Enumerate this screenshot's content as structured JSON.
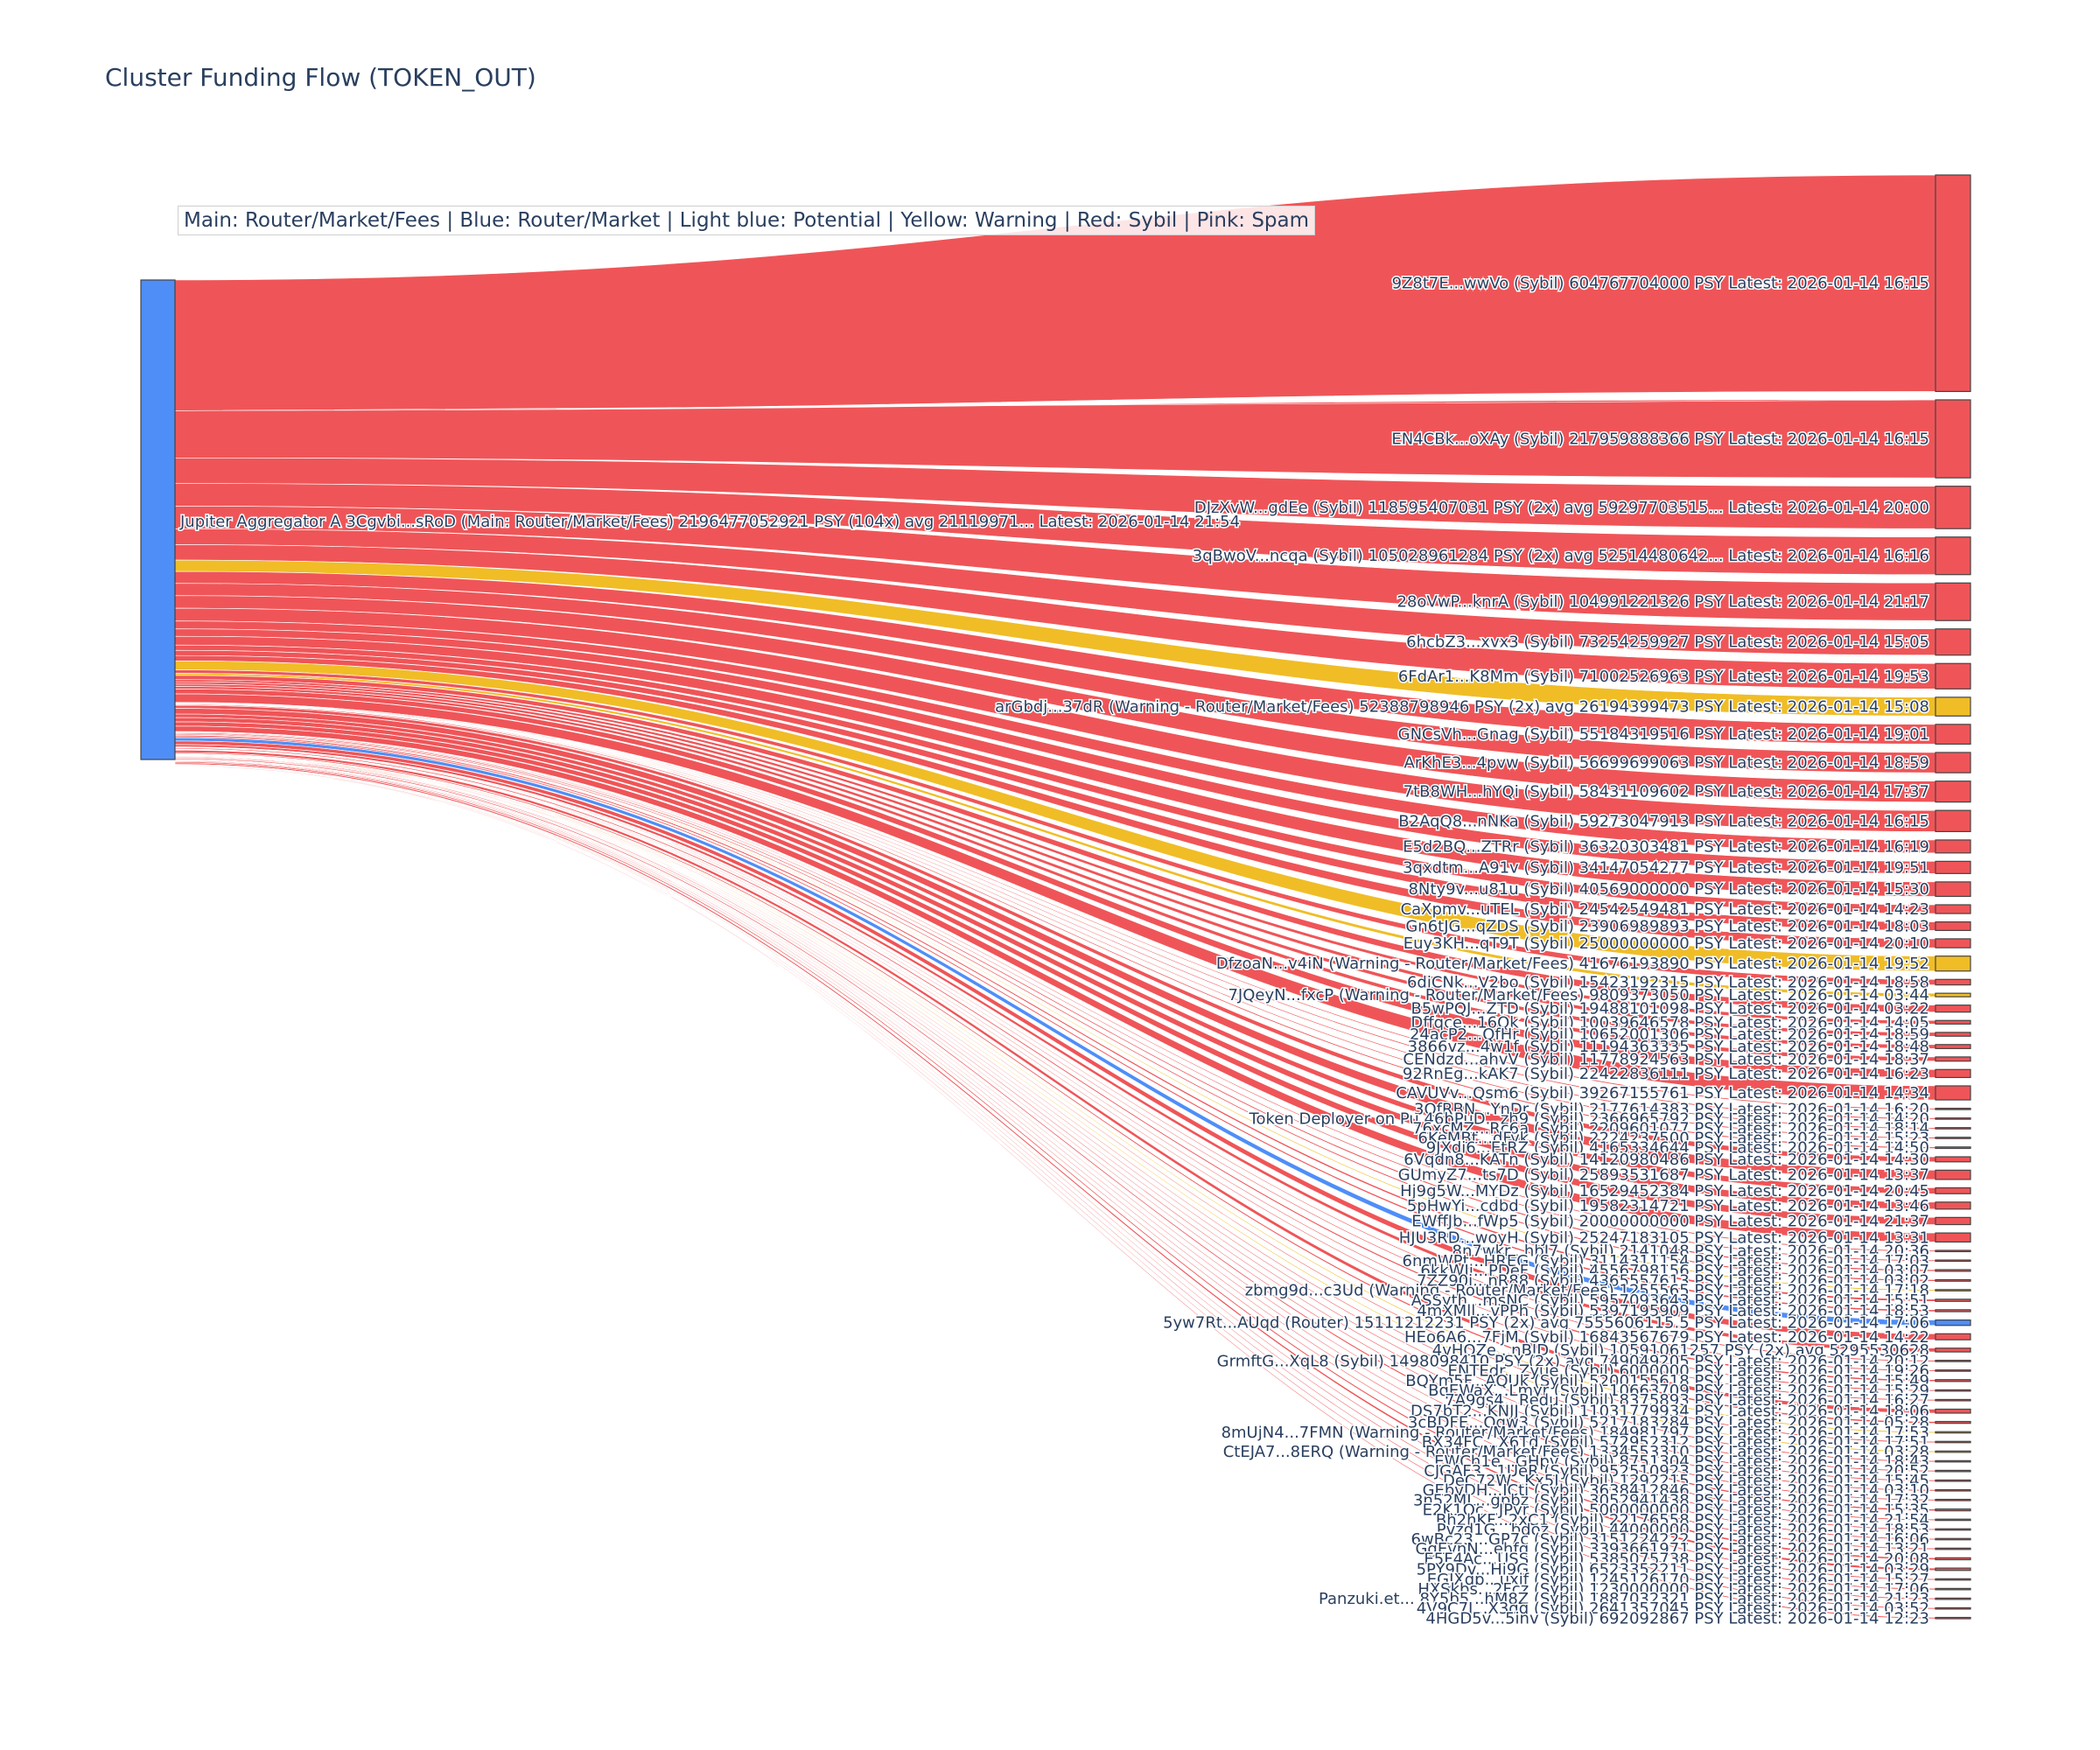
{
  "chart_data": {
    "type": "sankey",
    "title": "Cluster Funding Flow (TOKEN_OUT)",
    "annotation": "Main: Router/Market/Fees  |  Blue: Router/Market | Light blue: Potential | Yellow: Warning | Red: Sybil | Pink: Spam",
    "colors": {
      "source_node": "#4f8ef7",
      "sybil": "#ef5558",
      "warning": "#f0bd27",
      "router": "#4f8ef7",
      "node_border": "#444444",
      "label": "#2a3f5f"
    },
    "source": {
      "label": "Jupiter Aggregator A 3Cgvbi...sRoD (Main: Router/Market/Fees) 2196477052921 PSY (104x) avg 21119971... Latest: 2026-01-14 21:54",
      "value": 2196477052921
    },
    "targets": [
      {
        "label": "9Z8t7E...wwVo (Sybil) 604767704000 PSY Latest: 2026-01-14 16:15",
        "value": 604767704000,
        "cat": "sybil"
      },
      {
        "label": "EN4CBk...oXAy (Sybil) 217959888366 PSY Latest: 2026-01-14 16:15",
        "value": 217959888366,
        "cat": "sybil"
      },
      {
        "label": "DJzXvW...gdEe (Sybil) 118595407031 PSY (2x) avg 59297703515... Latest: 2026-01-14 20:00",
        "value": 118595407031,
        "cat": "sybil"
      },
      {
        "label": "3qBwoV...ncqa (Sybil) 105028961284 PSY (2x) avg 52514480642... Latest: 2026-01-14 16:16",
        "value": 105028961284,
        "cat": "sybil"
      },
      {
        "label": "28oVwP...knrA (Sybil) 104991221326 PSY Latest: 2026-01-14 21:17",
        "value": 104991221326,
        "cat": "sybil"
      },
      {
        "label": "6hcbZ3...xvx3 (Sybil) 73254259927 PSY Latest: 2026-01-14 15:05",
        "value": 73254259927,
        "cat": "sybil"
      },
      {
        "label": "6FdAr1...K8Mm (Sybil) 71002526963 PSY Latest: 2026-01-14 19:53",
        "value": 71002526963,
        "cat": "sybil"
      },
      {
        "label": "arGbdj...37dR (Warning - Router/Market/Fees) 52388798946 PSY (2x) avg 26194399473 PSY Latest: 2026-01-14 15:08",
        "value": 52388798946,
        "cat": "warning"
      },
      {
        "label": "GNCsVh...Gnag (Sybil) 55184319516 PSY Latest: 2026-01-14 19:01",
        "value": 55184319516,
        "cat": "sybil"
      },
      {
        "label": "ArKhE3...4pvw (Sybil) 56699699063 PSY Latest: 2026-01-14 18:59",
        "value": 56699699063,
        "cat": "sybil"
      },
      {
        "label": "7tB8WH...hYQi (Sybil) 58431109602 PSY Latest: 2026-01-14 17:37",
        "value": 58431109602,
        "cat": "sybil"
      },
      {
        "label": "B2AqQ8...nNKa (Sybil) 59273047913 PSY Latest: 2026-01-14 16:15",
        "value": 59273047913,
        "cat": "sybil"
      },
      {
        "label": "E5d2BQ...ZTRr (Sybil) 36320303481 PSY Latest: 2026-01-14 16:19",
        "value": 36320303481,
        "cat": "sybil"
      },
      {
        "label": "3qxdtm...A91v (Sybil) 34147054277 PSY Latest: 2026-01-14 19:51",
        "value": 34147054277,
        "cat": "sybil"
      },
      {
        "label": "8Nty9v...u81u (Sybil) 40569000000 PSY Latest: 2026-01-14 15:30",
        "value": 40569000000,
        "cat": "sybil"
      },
      {
        "label": "CaXpmv...uTEL (Sybil) 24542549481 PSY Latest: 2026-01-14 14:23",
        "value": 24542549481,
        "cat": "sybil"
      },
      {
        "label": "Gn6tJG...qZDS (Sybil) 23906989893 PSY Latest: 2026-01-14 18:03",
        "value": 23906989893,
        "cat": "sybil"
      },
      {
        "label": "Euy3KH...qT9T (Sybil) 25000000000 PSY Latest: 2026-01-14 20:10",
        "value": 25000000000,
        "cat": "sybil"
      },
      {
        "label": "DfzoaN...v4iN (Warning - Router/Market/Fees) 41676193890 PSY Latest: 2026-01-14 19:52",
        "value": 41676193890,
        "cat": "warning"
      },
      {
        "label": "6diCNk...V2bo (Sybil) 15423192315 PSY Latest: 2026-01-14 18:58",
        "value": 15423192315,
        "cat": "sybil"
      },
      {
        "label": "7JQeyN...fxcP (Warning - Router/Market/Fees) 9809373050 PSY Latest: 2026-01-14 03:44",
        "value": 9809373050,
        "cat": "warning"
      },
      {
        "label": "B5wPQJ...ZTD (Sybil) 19488101098 PSY Latest: 2026-01-14 03:22",
        "value": 19488101098,
        "cat": "sybil"
      },
      {
        "label": "Dffqce...16Qk (Sybil) 10039646578 PSY Latest: 2026-01-14 14:05",
        "value": 10039646578,
        "cat": "sybil"
      },
      {
        "label": "24acP2...QfHr (Sybil) 10652001306 PSY Latest: 2026-01-14 18:59",
        "value": 10652001306,
        "cat": "sybil"
      },
      {
        "label": "3866vz...4w1f (Sybil) 11194363335 PSY Latest: 2026-01-14 18:48",
        "value": 11194363335,
        "cat": "sybil"
      },
      {
        "label": "CENdzd...ahvV (Sybil) 11778924563 PSY Latest: 2026-01-14 18:37",
        "value": 11778924563,
        "cat": "sybil"
      },
      {
        "label": "92RnEg...kAK7 (Sybil) 22422836111 PSY Latest: 2026-01-14 16:23",
        "value": 22422836111,
        "cat": "sybil"
      },
      {
        "label": "CAVUVv...Qsm6 (Sybil) 39267155761 PSY Latest: 2026-01-14 14:34",
        "value": 39267155761,
        "cat": "sybil"
      },
      {
        "label": "3QfRBN...YnDr (Sybil) 2177614383 PSY Latest: 2026-01-14 16:20",
        "value": 2177614383,
        "cat": "sybil"
      },
      {
        "label": "Token Deployer on Pu 46bPuD...zh9 (Sybil) 2366965792 PSY Latest: 2026-01-14 14:20",
        "value": 2366965792,
        "cat": "sybil"
      },
      {
        "label": "76xcMZ...Rc6a (Sybil) 2209601077 PSY Latest: 2026-01-14 18:14",
        "value": 2209601077,
        "cat": "sybil"
      },
      {
        "label": "6KeMBt...dFyk (Sybil) 2224237500 PSY Latest: 2026-01-14 15:23",
        "value": 2224237500,
        "cat": "sybil"
      },
      {
        "label": "9JXdi6...EtRZ (Sybil) 4165334644 PSY Latest: 2026-01-14 14:50",
        "value": 4165334644,
        "cat": "sybil"
      },
      {
        "label": "6Vqdn8...KATn (Sybil) 14120980486 PSY Latest: 2026-01-14 14:30",
        "value": 14120980486,
        "cat": "sybil"
      },
      {
        "label": "GUmyZ7...ts7D (Sybil) 25893531687 PSY Latest: 2026-01-14 13:37",
        "value": 25893531687,
        "cat": "sybil"
      },
      {
        "label": "Hj9g5W...MYDz (Sybil) 16529452384 PSY Latest: 2026-01-14 20:45",
        "value": 16529452384,
        "cat": "sybil"
      },
      {
        "label": "5pHwYi...cdbd (Sybil) 19582314721 PSY Latest: 2026-01-14 13:46",
        "value": 19582314721,
        "cat": "sybil"
      },
      {
        "label": "EWffJb...fWp5 (Sybil) 20000000000 PSY Latest: 2026-01-14 21:37",
        "value": 20000000000,
        "cat": "sybil"
      },
      {
        "label": "HJU3RD...woyH (Sybil) 25247183105 PSY Latest: 2026-01-14 13:31",
        "value": 25247183105,
        "cat": "sybil"
      },
      {
        "label": "8n7wkr...hbJ7 (Sybil) 2141048 PSY Latest: 2026-01-14 20:36",
        "value": 2141048,
        "cat": "sybil"
      },
      {
        "label": "6nmWPt...HREG (Sybil) 3114311154 PSY Latest: 2026-01-14 17:03",
        "value": 3114311154,
        "cat": "sybil"
      },
      {
        "label": "6kkWJi...PDeF (Sybil) 4556798156 PSY Latest: 2026-01-14 03:07",
        "value": 4556798156,
        "cat": "sybil"
      },
      {
        "label": "7ZZ90i...nR88 (Sybil) 4365557613 PSY Latest: 2026-01-14 03:02",
        "value": 4365557613,
        "cat": "sybil"
      },
      {
        "label": "zbmg9d...c3Ud (Warning - Router/Market/Fees) 1255565 PSY Latest: 2026-01-14 17:18",
        "value": 1255565,
        "cat": "warning"
      },
      {
        "label": "ASSyth...msNC (Sybil) 5957093643 PSY Latest: 2026-01-14 15:51",
        "value": 5957093643,
        "cat": "sybil"
      },
      {
        "label": "4mXMll...vPPh (Sybil) 5397195909 PSY Latest: 2026-01-14 18:53",
        "value": 5397195909,
        "cat": "sybil"
      },
      {
        "label": "5yw7Rt...AUqd (Router) 15111212231 PSY (2x) avg 7555606115.5 PSY Latest: 2026-01-14 17:06",
        "value": 15111212231,
        "cat": "router"
      },
      {
        "label": "HEo6A6...7FjM (Sybil) 16843567679 PSY Latest: 2026-01-14 14:22",
        "value": 16843567679,
        "cat": "sybil"
      },
      {
        "label": "4vHQZe...nBJD (Sybil) 10591061257 PSY (2x) avg 5295530628",
        "value": 10591061257,
        "cat": "sybil"
      },
      {
        "label": "GrmftG...XqL8 (Sybil) 1498098410 PSY (2x) avg 749049205 PSY Latest: 2026-01-14 20:12",
        "value": 1498098410,
        "cat": "sybil"
      },
      {
        "label": "ENTEdr...Zyue (Sybil) 6000000 PSY Latest: 2026-01-14 19:26",
        "value": 6000000,
        "cat": "sybil"
      },
      {
        "label": "BQYm5F...AQUk (Sybil) 5200155618 PSY Latest: 2026-01-14 15:49",
        "value": 5200155618,
        "cat": "sybil"
      },
      {
        "label": "BqEWaX...Lmyr (Sybil) 10663709 PSY Latest: 2026-01-14 15:29",
        "value": 10663709,
        "cat": "sybil"
      },
      {
        "label": "7A9gs4...Redu (Sybil) 8375893 PSY Latest: 2026-01-14 16:27",
        "value": 8375893,
        "cat": "sybil"
      },
      {
        "label": "DS7bT2...KNJJ (Sybil) 11031779934 PSY Latest: 2026-01-14 18:06",
        "value": 11031779934,
        "cat": "sybil"
      },
      {
        "label": "3cBDFE...Qgw3 (Sybil) 5217183284 PSY Latest: 2026-01-14 05:28",
        "value": 5217183284,
        "cat": "sybil"
      },
      {
        "label": "8mUjN4...7FMN (Warning - Router/Market/Fees) 184981797 PSY Latest: 2026-01-14 17:53",
        "value": 184981797,
        "cat": "warning"
      },
      {
        "label": "BX34FC...X6Td (Sybil) 572952312 PSY Latest: 2026-01-14 17:51",
        "value": 572952312,
        "cat": "sybil"
      },
      {
        "label": "CtEJA7...8ERQ (Warning - Router/Market/Fees) 1334553310 PSY Latest: 2026-01-14 03:28",
        "value": 1334553310,
        "cat": "warning"
      },
      {
        "label": "EWCh1e...GHpv (Sybil) 8751304 PSY Latest: 2026-01-14 18:43",
        "value": 8751304,
        "cat": "sybil"
      },
      {
        "label": "CJGAF3...1UeR (Sybil) 952510923 PSY Latest: 2026-01-14 20:52",
        "value": 952510923,
        "cat": "sybil"
      },
      {
        "label": "DeC72W...Kx5J (Sybil) 1292215 PSY Latest: 2026-01-14 15:45",
        "value": 1292215,
        "cat": "sybil"
      },
      {
        "label": "GEbvDH...JCti (Sybil) 3638412846 PSY Latest: 2026-01-14 03:10",
        "value": 3638412846,
        "cat": "sybil"
      },
      {
        "label": "3n52ML...gpbz (Sybil) 3052941438 PSY Latest: 2026-01-14 17:32",
        "value": 3052941438,
        "cat": "sybil"
      },
      {
        "label": "E2K1Qc...JPyr (Sybil) 5000000000 PSY Latest: 2026-01-14 15:35",
        "value": 5000000000,
        "cat": "sybil"
      },
      {
        "label": "Bh2hKF...2xC1 (Sybil) 22176558 PSY Latest: 2026-01-14 21:54",
        "value": 22176558,
        "cat": "sybil"
      },
      {
        "label": "Pvzd1G...bdoz (Sybil) 44000000 PSY Latest: 2026-01-14 18:53",
        "value": 44000000,
        "cat": "sybil"
      },
      {
        "label": "6wBc23...GP7c (Sybil) 3151224222 PSY Latest: 2026-01-14 16:06",
        "value": 3151224222,
        "cat": "sybil"
      },
      {
        "label": "GgEvnN...ehfq (Sybil) 3393661971 PSY Latest: 2026-01-14 13:21",
        "value": 3393661971,
        "cat": "sybil"
      },
      {
        "label": "E5F4Ac...USS (Sybil) 5385075738 PSY Latest: 2026-01-14 20:08",
        "value": 5385075738,
        "cat": "sybil"
      },
      {
        "label": "5PY9Dv...Hi9G (Sybil) 6523352211 PSY Latest: 2026-01-14 03:29",
        "value": 6523352211,
        "cat": "sybil"
      },
      {
        "label": "EGJXqp...uxjf (Sybil) 1245126170 PSY Latest: 2026-01-14 15:27",
        "value": 1245126170,
        "cat": "sybil"
      },
      {
        "label": "HXSkbs...2Fcz (Sybil) 1230000000 PSY Latest: 2026-01-14 17:06",
        "value": 1230000000,
        "cat": "sybil"
      },
      {
        "label": "Panzuki.et... 8Y5b5...hM8Z (Sybil) 1887032321 PSY Latest: 2026-01-14 21:23",
        "value": 1887032321,
        "cat": "sybil"
      },
      {
        "label": "4V9C7J...X3qq (Sybil) 2641357045 PSY Latest: 2026-01-14 03:52",
        "value": 2641357045,
        "cat": "sybil"
      },
      {
        "label": "4HGD5v...5inv (Sybil) 692092867 PSY Latest: 2026-01-14 12:23",
        "value": 692092867,
        "cat": "sybil"
      }
    ]
  }
}
